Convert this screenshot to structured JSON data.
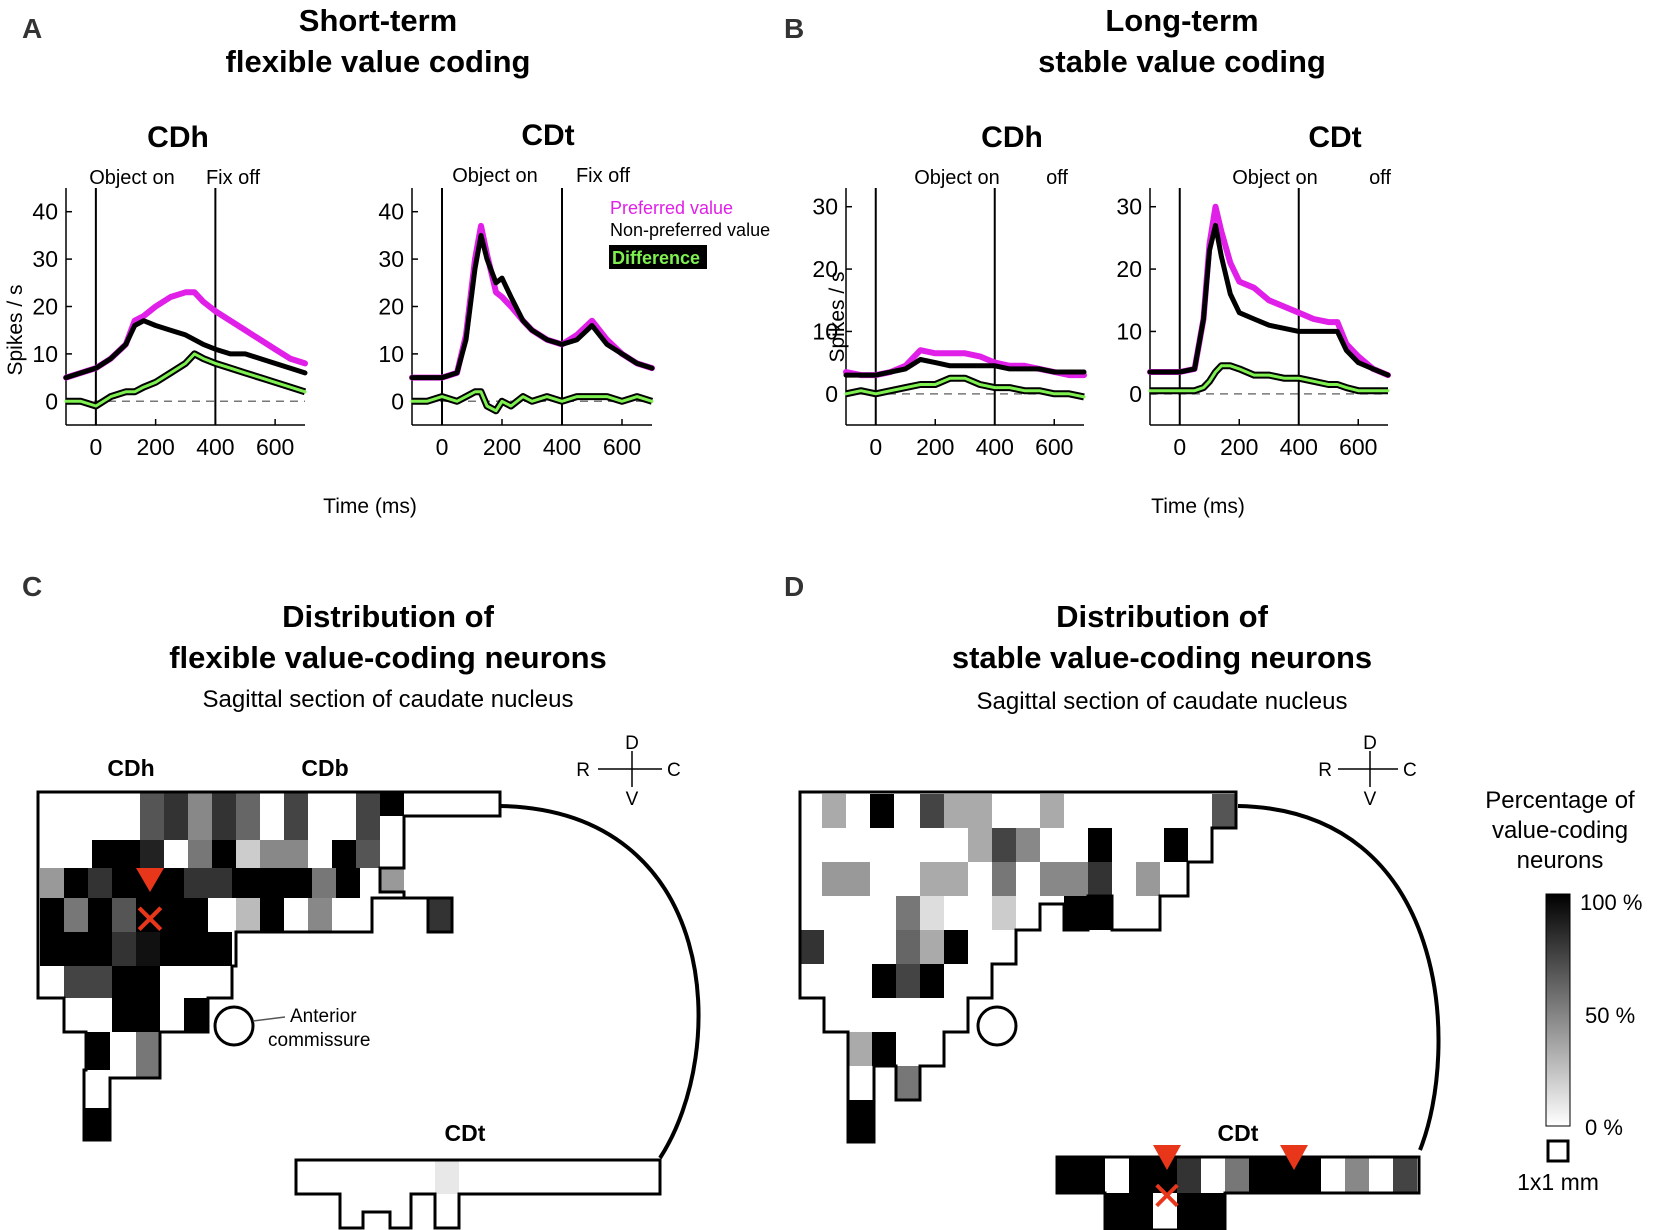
{
  "panel_letters": {
    "a": "A",
    "b": "B",
    "c": "C",
    "d": "D"
  },
  "headings": {
    "a_line1": "Short-term",
    "a_line2": "flexible value coding",
    "b_line1": "Long-term",
    "b_line2": "stable value coding",
    "c_line1": "Distribution of",
    "c_line2": "flexible value-coding neurons",
    "c_sub": "Sagittal section of caudate nucleus",
    "d_line1": "Distribution of",
    "d_line2": "stable value-coding neurons",
    "d_sub": "Sagittal section of caudate nucleus"
  },
  "legend": {
    "preferred": "Preferred value",
    "nonpreferred": "Non-preferred value",
    "difference": "Difference"
  },
  "axis_text": {
    "ylabel": "Spikes / s",
    "xlabel": "Time (ms)"
  },
  "maps": {
    "cdh": "CDh",
    "cdb": "CDb",
    "cdt": "CDt",
    "anterior_line1": "Anterior",
    "anterior_line2": "commissure",
    "compass": {
      "d": "D",
      "v": "V",
      "r": "R",
      "c": "C"
    },
    "colorbar": {
      "title_line1": "Percentage of",
      "title_line2": "value-coding",
      "title_line3": "neurons",
      "ticks": [
        "100 %",
        "50 %",
        "0 %"
      ],
      "scale": "1x1 mm"
    }
  },
  "colors": {
    "preferred": "#e020e8",
    "nonpreferred": "#000000",
    "difference": "#7ef050",
    "marker": "#e8361a"
  },
  "chart_data": [
    {
      "type": "line",
      "panel": "A",
      "title": "CDh",
      "events": [
        "Object on",
        "Fix off"
      ],
      "event_times": [
        0,
        400
      ],
      "xlim": [
        -100,
        700
      ],
      "ylim": [
        -5,
        45
      ],
      "xticks": [
        0,
        200,
        400,
        600
      ],
      "yticks": [
        0,
        10,
        20,
        30,
        40
      ],
      "xlabel": "",
      "ylabel": "Spikes / s",
      "x": [
        -100,
        -50,
        0,
        50,
        100,
        130,
        160,
        200,
        250,
        300,
        330,
        360,
        400,
        450,
        500,
        550,
        600,
        650,
        700
      ],
      "series": [
        {
          "name": "Preferred value",
          "values": [
            5,
            6,
            7,
            9,
            12,
            17,
            18,
            20,
            22,
            23,
            23,
            21,
            19,
            17,
            15,
            13,
            11,
            9,
            8
          ]
        },
        {
          "name": "Non-preferred value",
          "values": [
            5,
            6,
            7,
            9,
            12,
            16,
            17,
            16,
            15,
            14,
            13,
            12,
            11,
            10,
            10,
            9,
            8,
            7,
            6
          ]
        },
        {
          "name": "Difference",
          "values": [
            0,
            0,
            -1,
            1,
            2,
            2,
            3,
            4,
            6,
            8,
            10,
            9,
            8,
            7,
            6,
            5,
            4,
            3,
            2
          ]
        }
      ]
    },
    {
      "type": "line",
      "panel": "A",
      "title": "CDt",
      "events": [
        "Object on",
        "Fix off"
      ],
      "event_times": [
        0,
        400
      ],
      "xlim": [
        -100,
        700
      ],
      "ylim": [
        -5,
        45
      ],
      "xticks": [
        0,
        200,
        400,
        600
      ],
      "yticks": [
        0,
        10,
        20,
        30,
        40
      ],
      "xlabel": "Time (ms)",
      "ylabel": "",
      "x": [
        -100,
        -50,
        0,
        50,
        80,
        110,
        130,
        150,
        180,
        200,
        230,
        270,
        300,
        350,
        400,
        450,
        500,
        550,
        600,
        650,
        700
      ],
      "series": [
        {
          "name": "Preferred value",
          "values": [
            5,
            5,
            5,
            6,
            14,
            30,
            37,
            31,
            23,
            22,
            20,
            17,
            15,
            13,
            12,
            14,
            17,
            13,
            10,
            8,
            7
          ]
        },
        {
          "name": "Non-preferred value",
          "values": [
            5,
            5,
            5,
            6,
            13,
            28,
            35,
            30,
            25,
            26,
            22,
            17,
            15,
            13,
            12,
            13,
            16,
            12,
            10,
            8,
            7
          ]
        },
        {
          "name": "Difference",
          "values": [
            0,
            0,
            1,
            0,
            1,
            2,
            2,
            -1,
            -2,
            0,
            -1,
            1,
            0,
            1,
            0,
            1,
            1,
            1,
            0,
            1,
            0
          ]
        }
      ]
    },
    {
      "type": "line",
      "panel": "B",
      "title": "CDh",
      "events": [
        "Object on",
        "off"
      ],
      "event_times": [
        0,
        400
      ],
      "xlim": [
        -100,
        700
      ],
      "ylim": [
        -5,
        33
      ],
      "xticks": [
        0,
        200,
        400,
        600
      ],
      "yticks": [
        0,
        10,
        20,
        30
      ],
      "xlabel": "",
      "ylabel": "Spikes / s",
      "x": [
        -100,
        -50,
        0,
        50,
        100,
        150,
        200,
        250,
        300,
        350,
        400,
        450,
        500,
        550,
        600,
        650,
        700
      ],
      "series": [
        {
          "name": "Preferred value",
          "values": [
            3.5,
            3,
            3,
            3.5,
            4.5,
            7,
            6.5,
            6.5,
            6.5,
            6,
            5,
            4.5,
            4.5,
            4,
            3.5,
            3,
            3
          ]
        },
        {
          "name": "Non-preferred value",
          "values": [
            3,
            3,
            3,
            3.5,
            4,
            5.5,
            5,
            4.5,
            4.5,
            4.5,
            4.5,
            4,
            4,
            4,
            3.5,
            3.5,
            3.5
          ]
        },
        {
          "name": "Difference",
          "values": [
            0,
            0.5,
            0,
            0.5,
            1,
            1.5,
            1.5,
            2.5,
            2.5,
            1.5,
            1,
            1,
            0.5,
            0.5,
            0,
            0,
            -0.5
          ]
        }
      ]
    },
    {
      "type": "line",
      "panel": "B",
      "title": "CDt",
      "events": [
        "Object on",
        "off"
      ],
      "event_times": [
        0,
        400
      ],
      "xlim": [
        -100,
        700
      ],
      "ylim": [
        -5,
        33
      ],
      "xticks": [
        0,
        200,
        400,
        600
      ],
      "yticks": [
        0,
        10,
        20,
        30
      ],
      "xlabel": "Time (ms)",
      "ylabel": "",
      "x": [
        -100,
        -50,
        0,
        50,
        80,
        100,
        120,
        140,
        170,
        200,
        250,
        300,
        350,
        400,
        450,
        500,
        530,
        560,
        600,
        650,
        700
      ],
      "series": [
        {
          "name": "Preferred value",
          "values": [
            3.5,
            3.5,
            3.5,
            4,
            12,
            24,
            30,
            26,
            21,
            18,
            17,
            15,
            14,
            13,
            12,
            11.5,
            11.5,
            8,
            6,
            4,
            3
          ]
        },
        {
          "name": "Non-preferred value",
          "values": [
            3.5,
            3.5,
            3.5,
            4,
            12,
            23,
            27,
            22,
            16,
            13,
            12,
            11,
            10.5,
            10,
            10,
            10,
            10,
            7,
            5,
            4,
            3
          ]
        },
        {
          "name": "Difference",
          "values": [
            0.5,
            0.5,
            0.5,
            0.5,
            1,
            2,
            3.5,
            4.5,
            4.5,
            4,
            3,
            3,
            2.5,
            2.5,
            2,
            1.5,
            1.5,
            1,
            0.5,
            0.5,
            0.5
          ]
        }
      ]
    }
  ]
}
